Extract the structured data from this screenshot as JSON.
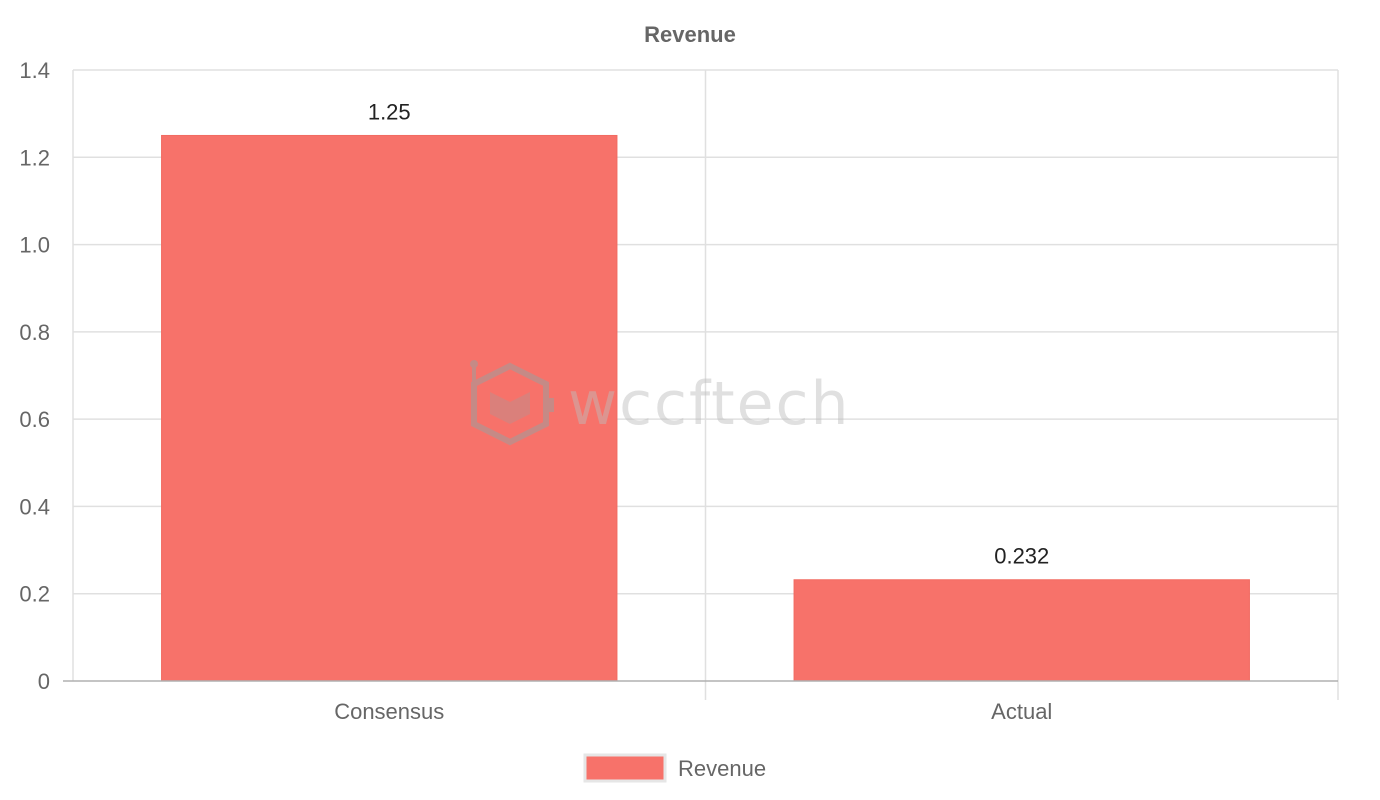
{
  "chart_data": {
    "type": "bar",
    "title": "Revenue",
    "categories": [
      "Consensus",
      "Actual"
    ],
    "series": [
      {
        "name": "Revenue",
        "values": [
          1.25,
          0.232
        ],
        "data_labels": [
          "1.25",
          "0.232"
        ]
      }
    ],
    "xlabel": "",
    "ylabel": "",
    "ylim": [
      0,
      1.4
    ],
    "yticks": [
      "0",
      "0.2",
      "0.4",
      "0.6",
      "0.8",
      "1.0",
      "1.2",
      "1.4"
    ],
    "ytick_values": [
      0,
      0.2,
      0.4,
      0.6,
      0.8,
      1.0,
      1.2,
      1.4
    ],
    "grid": true,
    "legend_position": "bottom-center"
  },
  "colors": {
    "bar_fill": "#f7726a",
    "bar_border": "#f26b62",
    "grid": "#e0e0e0",
    "axis": "#b0b0b0",
    "title": "#666666",
    "tick_label": "#666666",
    "data_label": "#222222",
    "watermark": "#bdbdbd"
  },
  "watermark": {
    "text": "wccftech",
    "icon": "wccftech-logo-icon"
  }
}
